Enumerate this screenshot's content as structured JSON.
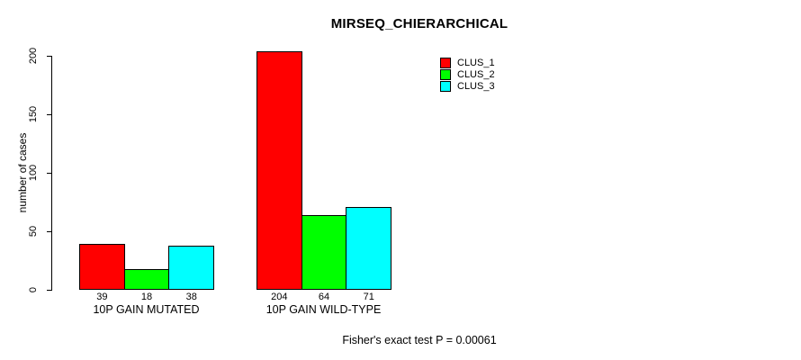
{
  "chart_data": {
    "type": "bar",
    "title": "MIRSEQ_CHIERARCHICAL",
    "xlabel": "",
    "ylabel": "number of cases",
    "categories": [
      "10P GAIN MUTATED",
      "10P GAIN WILD-TYPE"
    ],
    "series": [
      {
        "name": "CLUS_1",
        "color": "#FF0000",
        "values": [
          39,
          204
        ]
      },
      {
        "name": "CLUS_2",
        "color": "#00FF00",
        "values": [
          18,
          64
        ]
      },
      {
        "name": "CLUS_3",
        "color": "#00FFFF",
        "values": [
          38,
          71
        ]
      }
    ],
    "bar_value_labels": [
      [
        "39",
        "18",
        "38"
      ],
      [
        "204",
        "64",
        "71"
      ]
    ],
    "yticks": [
      0,
      50,
      100,
      150,
      200
    ],
    "ytick_labels": [
      "0",
      "50",
      "100",
      "150",
      "200"
    ],
    "ylim": [
      0,
      204
    ],
    "grid": false,
    "legend_position": "top-right",
    "annotation": "Fisher's exact test P = 0.00061",
    "bar_border_color": "#000000",
    "axis_color": "#000000"
  }
}
